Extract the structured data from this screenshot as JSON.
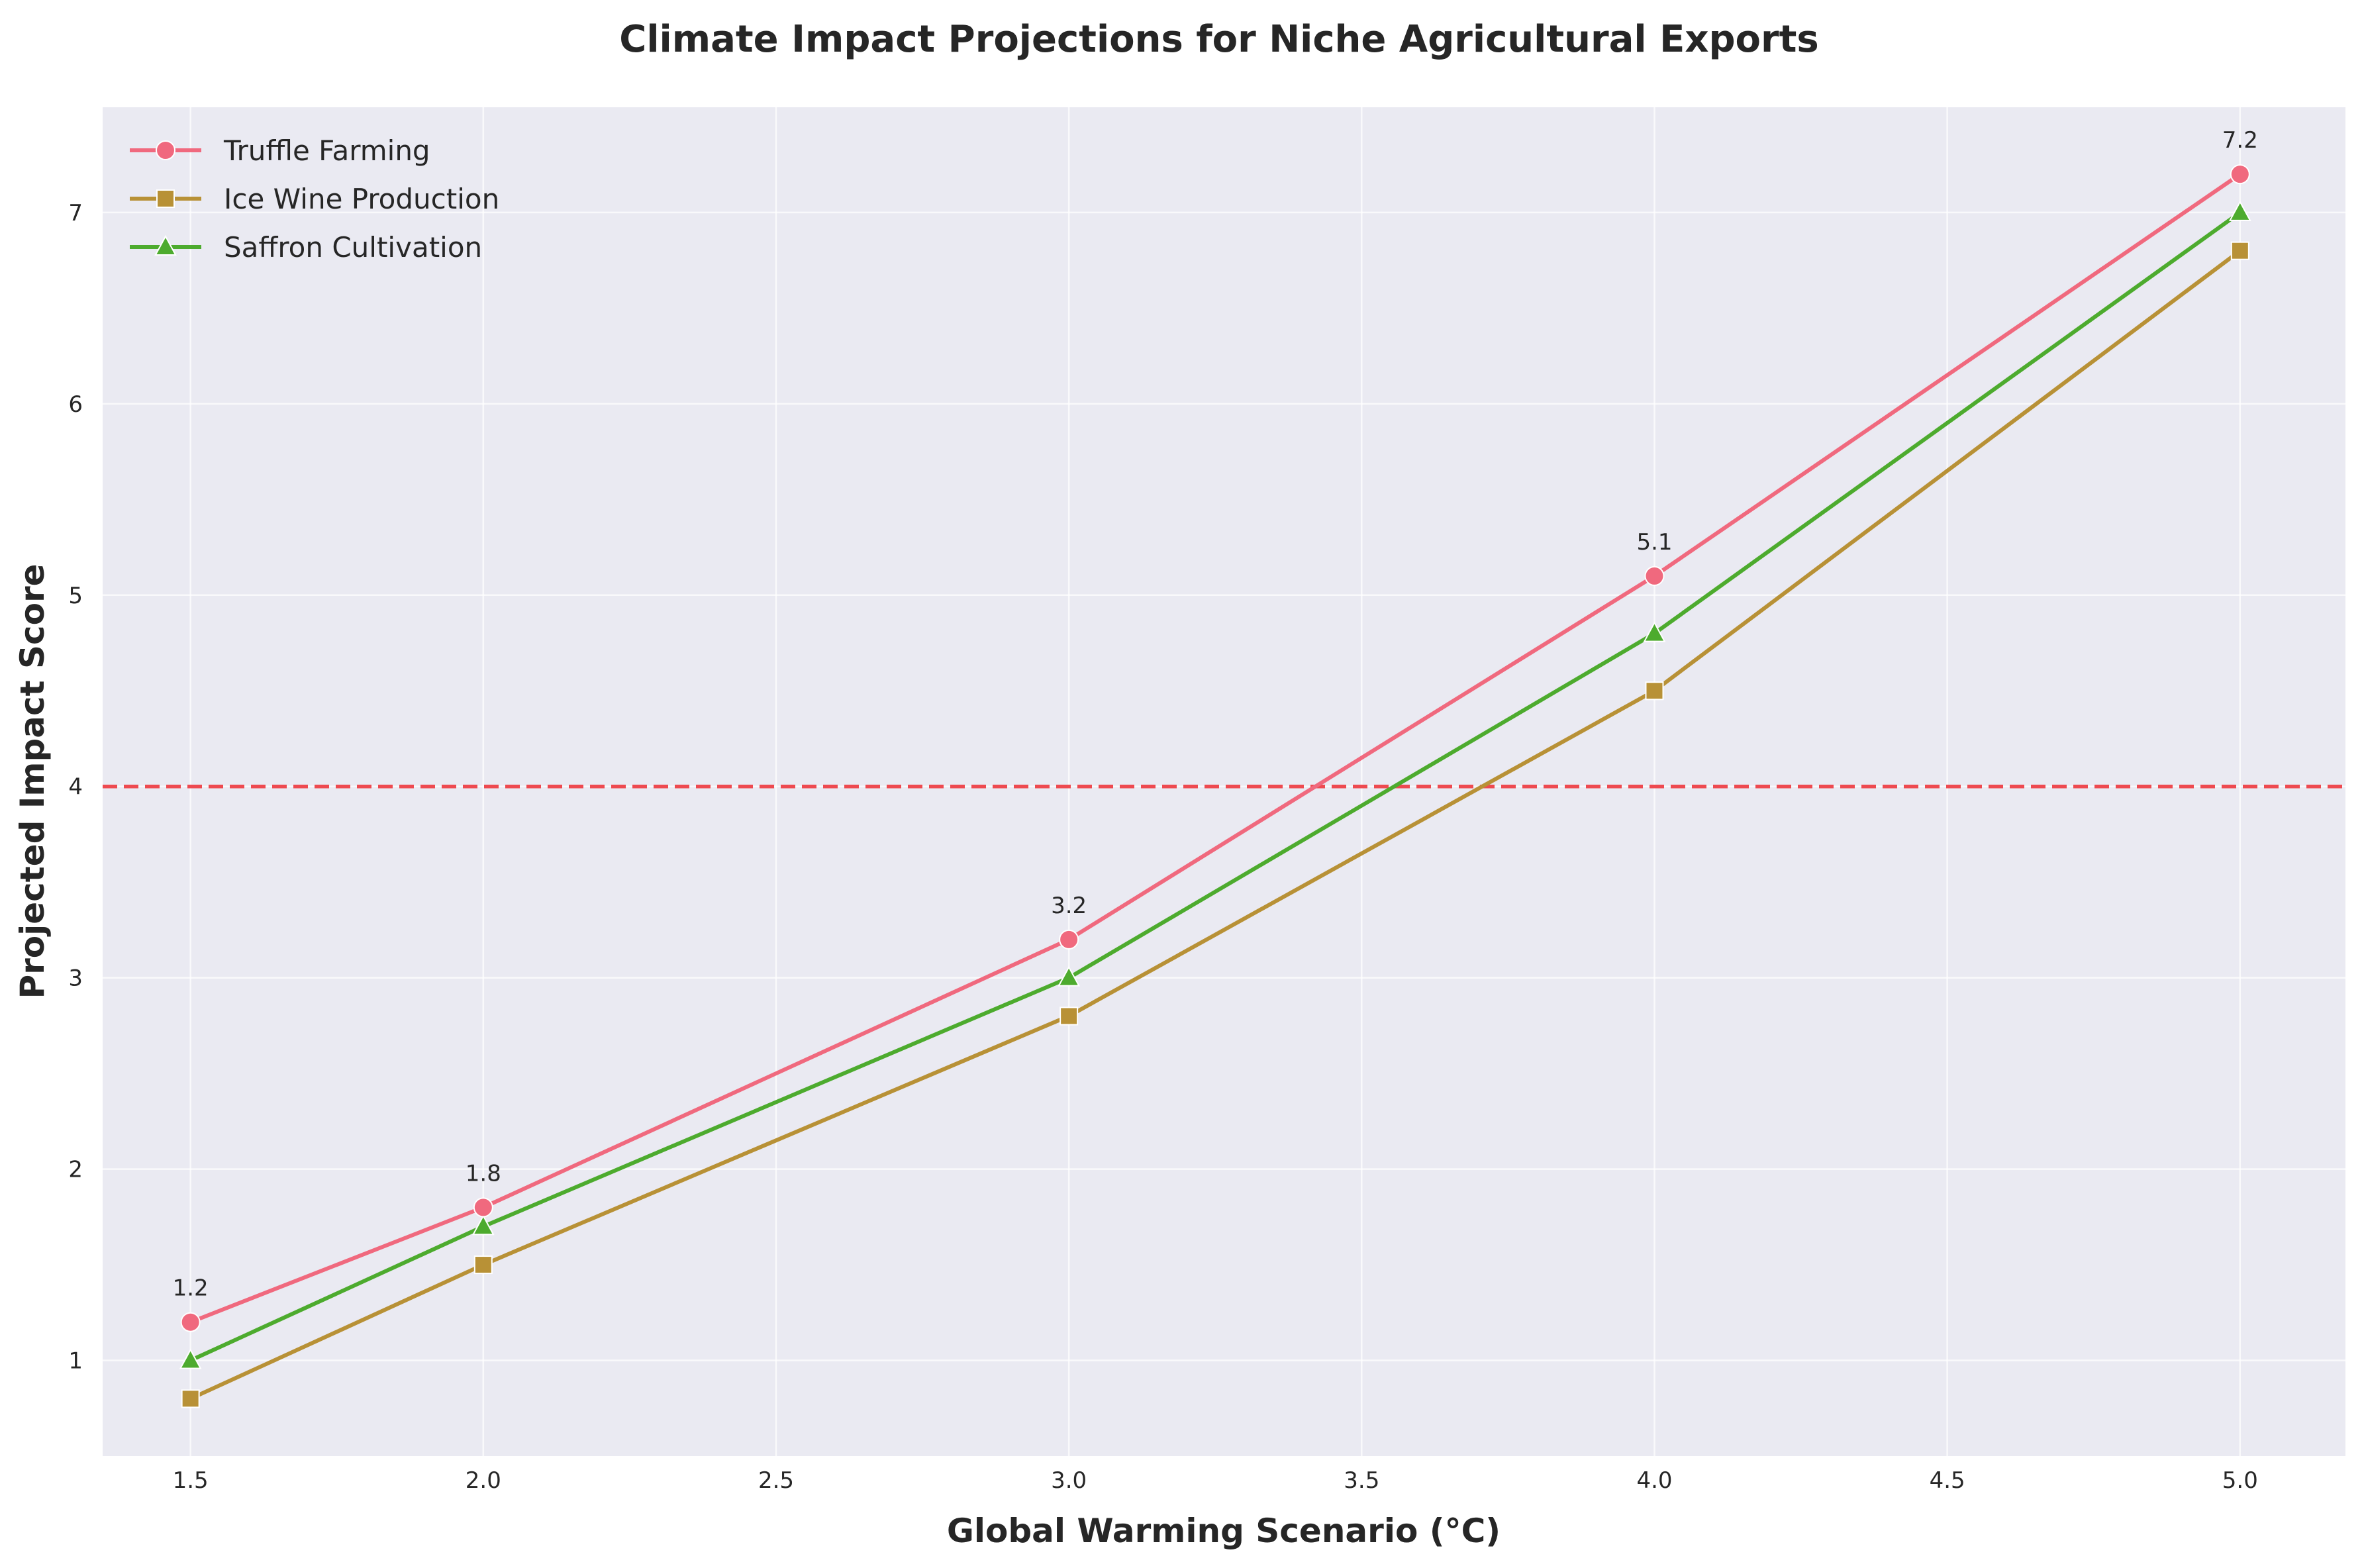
{
  "chart_data": {
    "type": "line",
    "title": "Climate Impact Projections for Niche Agricultural Exports",
    "xlabel": "Global Warming Scenario (°C)",
    "ylabel": "Projected Impact Score",
    "xlim": [
      1.35,
      5.18
    ],
    "ylim": [
      0.5,
      7.55
    ],
    "xticks": [
      1.5,
      2.0,
      2.5,
      3.0,
      3.5,
      4.0,
      4.5,
      5.0
    ],
    "xtick_labels": [
      "1.5",
      "2.0",
      "2.5",
      "3.0",
      "3.5",
      "4.0",
      "4.5",
      "5.0"
    ],
    "yticks": [
      1,
      2,
      3,
      4,
      5,
      6,
      7
    ],
    "ytick_labels": [
      "1",
      "2",
      "3",
      "4",
      "5",
      "6",
      "7"
    ],
    "grid": true,
    "legend_position": "top-left",
    "x": [
      1.5,
      2.0,
      3.0,
      4.0,
      5.0
    ],
    "series": [
      {
        "name": "Truffle Farming",
        "values": [
          1.2,
          1.8,
          3.2,
          5.1,
          7.2
        ],
        "color": "#f0697e",
        "marker": "circle"
      },
      {
        "name": "Ice Wine Production",
        "values": [
          0.8,
          1.5,
          2.8,
          4.5,
          6.8
        ],
        "color": "#b89136",
        "marker": "square"
      },
      {
        "name": "Saffron Cultivation",
        "values": [
          1.0,
          1.7,
          3.0,
          4.8,
          7.0
        ],
        "color": "#4dab2e",
        "marker": "triangle"
      }
    ],
    "data_labels": {
      "series_index": 0,
      "labels": [
        "1.2",
        "1.8",
        "3.2",
        "5.1",
        "7.2"
      ]
    },
    "reference_line": {
      "y": 4,
      "color": "#ee4a50",
      "style": "dashed"
    },
    "colors": {
      "plot_background": "#eaeaf2",
      "grid": "#ffffff"
    }
  }
}
